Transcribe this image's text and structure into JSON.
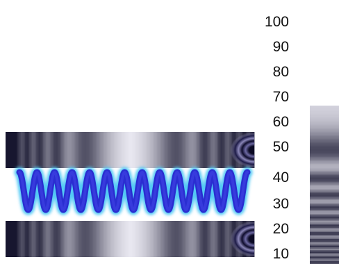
{
  "scale": {
    "labels": [
      "100",
      "90",
      "80",
      "70",
      "60",
      "50",
      "40",
      "30",
      "20",
      "10"
    ]
  },
  "colors": {
    "dark": "#0b0a24",
    "band": "#5a5690",
    "light": "#c9c6e2",
    "wave": "#2a2ed1",
    "wave_glow": "#52c9f5"
  },
  "icons": [
    "upper-pattern-strip",
    "lower-pattern-strip",
    "spring-wave",
    "color-scale-bar"
  ]
}
